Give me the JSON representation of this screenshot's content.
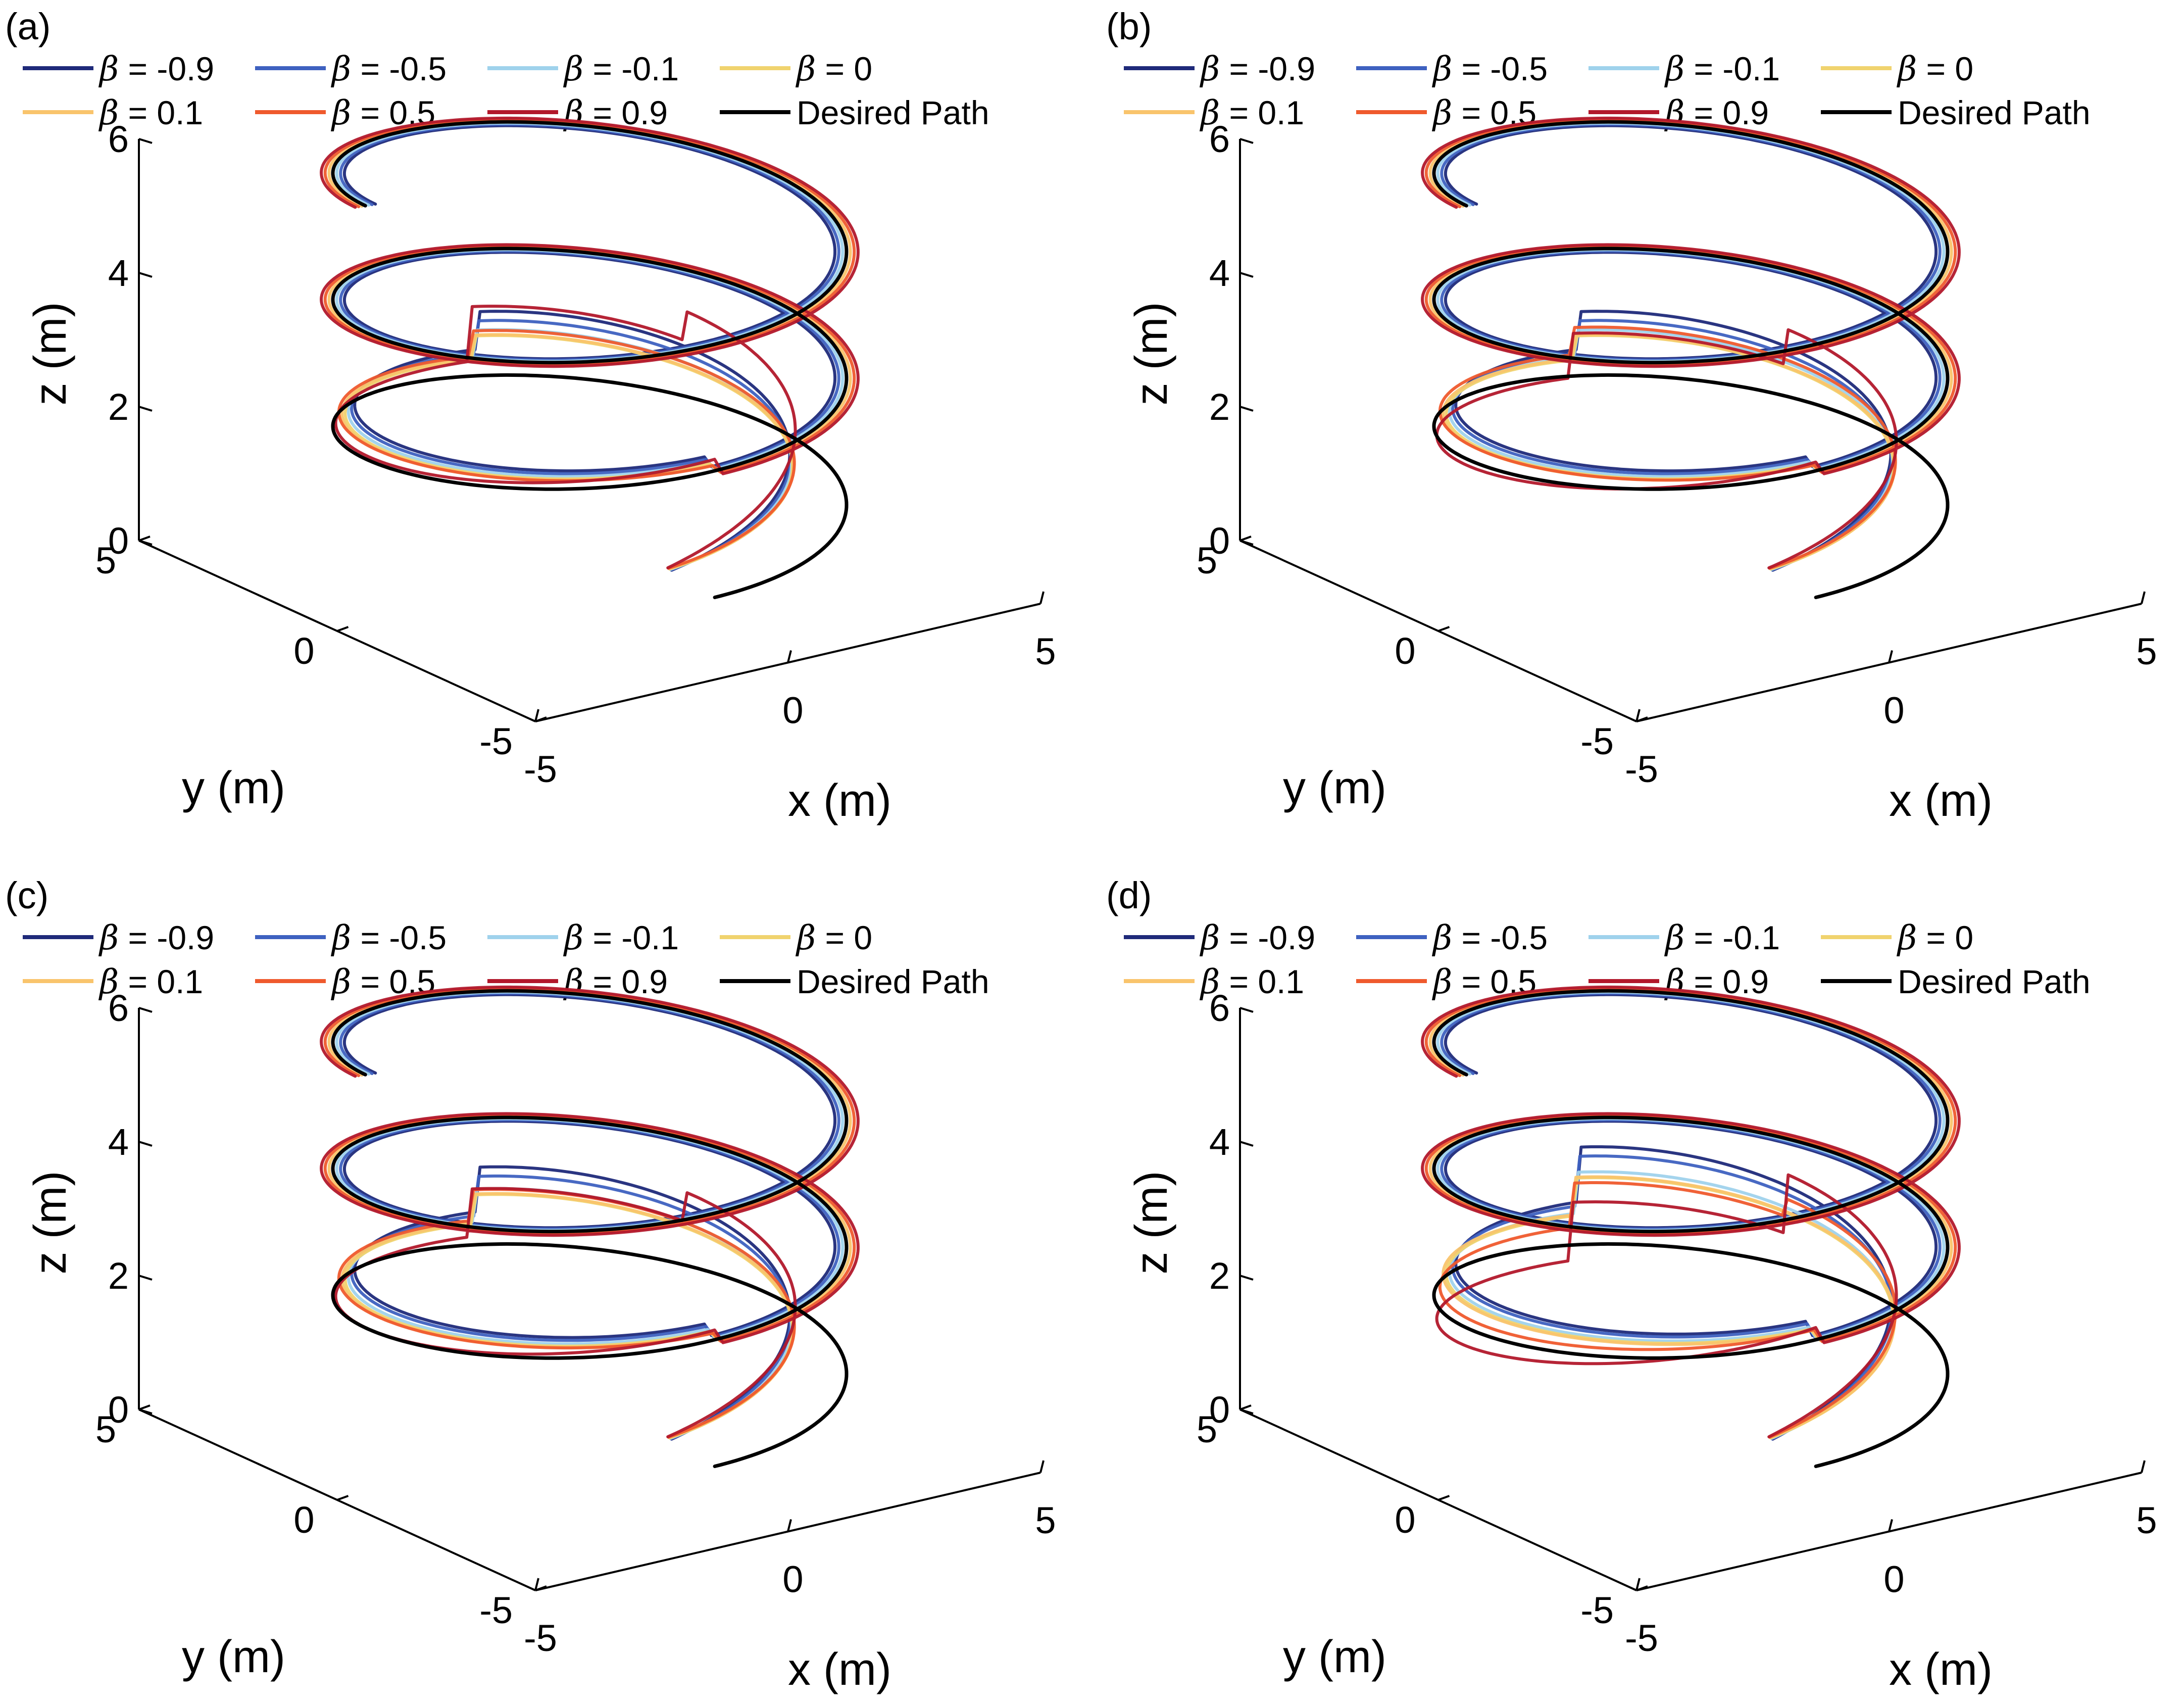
{
  "chart_data": [
    {
      "type": "line3d",
      "panel_label": "(a)",
      "xlabel": "x (m)",
      "ylabel": "y (m)",
      "zlabel": "z (m)",
      "xlim": [
        -5,
        5
      ],
      "ylim": [
        -5,
        5
      ],
      "zlim": [
        0,
        6
      ],
      "xticks": [
        "-5",
        "0",
        "5"
      ],
      "yticks": [
        "-5",
        "0",
        "5"
      ],
      "zticks": [
        "0",
        "2",
        "4",
        "6"
      ],
      "helix": {
        "radius": 4,
        "start_z": 0.8,
        "end_z": 6,
        "turns": 2.75
      },
      "legend": [
        {
          "symbol": "β",
          "label": " = -0.9",
          "color": "#1f2a7a"
        },
        {
          "symbol": "β",
          "label": " = -0.5",
          "color": "#3e61c0"
        },
        {
          "symbol": "β",
          "label": " = -0.1",
          "color": "#9fd2ec"
        },
        {
          "symbol": "β",
          "label": " = 0",
          "color": "#f0d36e"
        },
        {
          "symbol": "β",
          "label": " = 0.1",
          "color": "#f9c46c"
        },
        {
          "symbol": "β",
          "label": " = 0.5",
          "color": "#ef5a2d"
        },
        {
          "symbol": "β",
          "label": " = 0.9",
          "color": "#b2182b"
        },
        {
          "symbol": "",
          "label": "Desired Path",
          "color": "#000000"
        }
      ],
      "series": [
        {
          "name": "β = -0.9",
          "color": "#1f2a7a",
          "overshoot_z": 1.1,
          "dip_z": 0.0
        },
        {
          "name": "β = -0.5",
          "color": "#3e61c0",
          "overshoot_z": 0.95,
          "dip_z": 0.0
        },
        {
          "name": "β = -0.1",
          "color": "#9fd2ec",
          "overshoot_z": 0.8,
          "dip_z": 0.0
        },
        {
          "name": "β = 0",
          "color": "#f0d36e",
          "overshoot_z": 0.7,
          "dip_z": 0.0
        },
        {
          "name": "β = 0.1",
          "color": "#f9c46c",
          "overshoot_z": 0.7,
          "dip_z": 0.0
        },
        {
          "name": "β = 0.5",
          "color": "#ef5a2d",
          "overshoot_z": 0.75,
          "dip_z": 0.0
        },
        {
          "name": "β = 0.9",
          "color": "#b2182b",
          "overshoot_z": 1.6,
          "dip_z": 0.5
        },
        {
          "name": "Desired Path",
          "color": "#000000",
          "overshoot_z": 0,
          "dip_z": 0
        }
      ]
    },
    {
      "type": "line3d",
      "panel_label": "(b)",
      "xlabel": "x (m)",
      "ylabel": "y (m)",
      "zlabel": "z (m)",
      "xlim": [
        -5,
        5
      ],
      "ylim": [
        -5,
        5
      ],
      "zlim": [
        0,
        6
      ],
      "xticks": [
        "-5",
        "0",
        "5"
      ],
      "yticks": [
        "-5",
        "0",
        "5"
      ],
      "zticks": [
        "0",
        "2",
        "4",
        "6"
      ],
      "helix": {
        "radius": 4,
        "start_z": 0.8,
        "end_z": 6,
        "turns": 2.75
      },
      "legend": [
        {
          "symbol": "β",
          "label": " = -0.9",
          "color": "#1f2a7a"
        },
        {
          "symbol": "β",
          "label": " = -0.5",
          "color": "#3e61c0"
        },
        {
          "symbol": "β",
          "label": " = -0.1",
          "color": "#9fd2ec"
        },
        {
          "symbol": "β",
          "label": " = 0",
          "color": "#f0d36e"
        },
        {
          "symbol": "β",
          "label": " = 0.1",
          "color": "#f9c46c"
        },
        {
          "symbol": "β",
          "label": " = 0.5",
          "color": "#ef5a2d"
        },
        {
          "symbol": "β",
          "label": " = 0.9",
          "color": "#b2182b"
        },
        {
          "symbol": "",
          "label": "Desired Path",
          "color": "#000000"
        }
      ],
      "series": [
        {
          "name": "β = -0.9",
          "color": "#1f2a7a",
          "overshoot_z": 1.1,
          "dip_z": 0.0
        },
        {
          "name": "β = -0.5",
          "color": "#3e61c0",
          "overshoot_z": 0.95,
          "dip_z": 0.0
        },
        {
          "name": "β = -0.1",
          "color": "#9fd2ec",
          "overshoot_z": 0.8,
          "dip_z": 0.0
        },
        {
          "name": "β = 0",
          "color": "#f0d36e",
          "overshoot_z": 0.7,
          "dip_z": 0.0
        },
        {
          "name": "β = 0.1",
          "color": "#f9c46c",
          "overshoot_z": 0.7,
          "dip_z": 0.0
        },
        {
          "name": "β = 0.5",
          "color": "#ef5a2d",
          "overshoot_z": 0.8,
          "dip_z": 0.0
        },
        {
          "name": "β = 0.9",
          "color": "#b2182b",
          "overshoot_z": 1.3,
          "dip_z": 0.6
        },
        {
          "name": "Desired Path",
          "color": "#000000",
          "overshoot_z": 0,
          "dip_z": 0
        }
      ]
    },
    {
      "type": "line3d",
      "panel_label": "(c)",
      "xlabel": "x (m)",
      "ylabel": "y (m)",
      "zlabel": "z (m)",
      "xlim": [
        -5,
        5
      ],
      "ylim": [
        -5,
        5
      ],
      "zlim": [
        0,
        6
      ],
      "xticks": [
        "-5",
        "0",
        "5"
      ],
      "yticks": [
        "-5",
        "0",
        "5"
      ],
      "zticks": [
        "0",
        "2",
        "4",
        "6"
      ],
      "helix": {
        "radius": 4,
        "start_z": 0.8,
        "end_z": 6,
        "turns": 2.75
      },
      "legend": [
        {
          "symbol": "β",
          "label": " = -0.9",
          "color": "#1f2a7a"
        },
        {
          "symbol": "β",
          "label": " = -0.5",
          "color": "#3e61c0"
        },
        {
          "symbol": "β",
          "label": " = -0.1",
          "color": "#9fd2ec"
        },
        {
          "symbol": "β",
          "label": " = 0",
          "color": "#f0d36e"
        },
        {
          "symbol": "β",
          "label": " = 0.1",
          "color": "#f9c46c"
        },
        {
          "symbol": "β",
          "label": " = 0.5",
          "color": "#ef5a2d"
        },
        {
          "symbol": "β",
          "label": " = 0.9",
          "color": "#b2182b"
        },
        {
          "symbol": "",
          "label": "Desired Path",
          "color": "#000000"
        }
      ],
      "series": [
        {
          "name": "β = -0.9",
          "color": "#1f2a7a",
          "overshoot_z": 1.3,
          "dip_z": 0.0
        },
        {
          "name": "β = -0.5",
          "color": "#3e61c0",
          "overshoot_z": 1.15,
          "dip_z": 0.0
        },
        {
          "name": "β = -0.1",
          "color": "#9fd2ec",
          "overshoot_z": 0.95,
          "dip_z": 0.0
        },
        {
          "name": "β = 0",
          "color": "#f0d36e",
          "overshoot_z": 0.85,
          "dip_z": 0.0
        },
        {
          "name": "β = 0.1",
          "color": "#f9c46c",
          "overshoot_z": 0.85,
          "dip_z": 0.0
        },
        {
          "name": "β = 0.5",
          "color": "#ef5a2d",
          "overshoot_z": 0.9,
          "dip_z": 0.0
        },
        {
          "name": "β = 0.9",
          "color": "#b2182b",
          "overshoot_z": 1.4,
          "dip_z": 0.5
        },
        {
          "name": "Desired Path",
          "color": "#000000",
          "overshoot_z": 0,
          "dip_z": 0
        }
      ]
    },
    {
      "type": "line3d",
      "panel_label": "(d)",
      "xlabel": "x (m)",
      "ylabel": "y (m)",
      "zlabel": "z (m)",
      "xlim": [
        -5,
        5
      ],
      "ylim": [
        -5,
        5
      ],
      "zlim": [
        0,
        6
      ],
      "xticks": [
        "-5",
        "0",
        "5"
      ],
      "yticks": [
        "-5",
        "0",
        "5"
      ],
      "zticks": [
        "0",
        "2",
        "4",
        "6"
      ],
      "helix": {
        "radius": 4,
        "start_z": 0.8,
        "end_z": 6,
        "turns": 2.75
      },
      "legend": [
        {
          "symbol": "β",
          "label": " = -0.9",
          "color": "#1f2a7a"
        },
        {
          "symbol": "β",
          "label": " = -0.5",
          "color": "#3e61c0"
        },
        {
          "symbol": "β",
          "label": " = -0.1",
          "color": "#9fd2ec"
        },
        {
          "symbol": "β",
          "label": " = 0",
          "color": "#f0d36e"
        },
        {
          "symbol": "β",
          "label": " = 0.1",
          "color": "#f9c46c"
        },
        {
          "symbol": "β",
          "label": " = 0.5",
          "color": "#ef5a2d"
        },
        {
          "symbol": "β",
          "label": " = 0.9",
          "color": "#b2182b"
        },
        {
          "symbol": "",
          "label": "Desired Path",
          "color": "#000000"
        }
      ],
      "series": [
        {
          "name": "β = -0.9",
          "color": "#1f2a7a",
          "overshoot_z": 1.6,
          "dip_z": 0.0
        },
        {
          "name": "β = -0.5",
          "color": "#3e61c0",
          "overshoot_z": 1.45,
          "dip_z": 0.0
        },
        {
          "name": "β = -0.1",
          "color": "#9fd2ec",
          "overshoot_z": 1.2,
          "dip_z": 0.0
        },
        {
          "name": "β = 0",
          "color": "#f0d36e",
          "overshoot_z": 1.1,
          "dip_z": 0.0
        },
        {
          "name": "β = 0.1",
          "color": "#f9c46c",
          "overshoot_z": 1.1,
          "dip_z": 0.0
        },
        {
          "name": "β = 0.5",
          "color": "#ef5a2d",
          "overshoot_z": 1.3,
          "dip_z": 0.3
        },
        {
          "name": "β = 0.9",
          "color": "#b2182b",
          "overshoot_z": 1.7,
          "dip_z": 1.0
        },
        {
          "name": "Desired Path",
          "color": "#000000",
          "overshoot_z": 0,
          "dip_z": 0
        }
      ]
    }
  ]
}
